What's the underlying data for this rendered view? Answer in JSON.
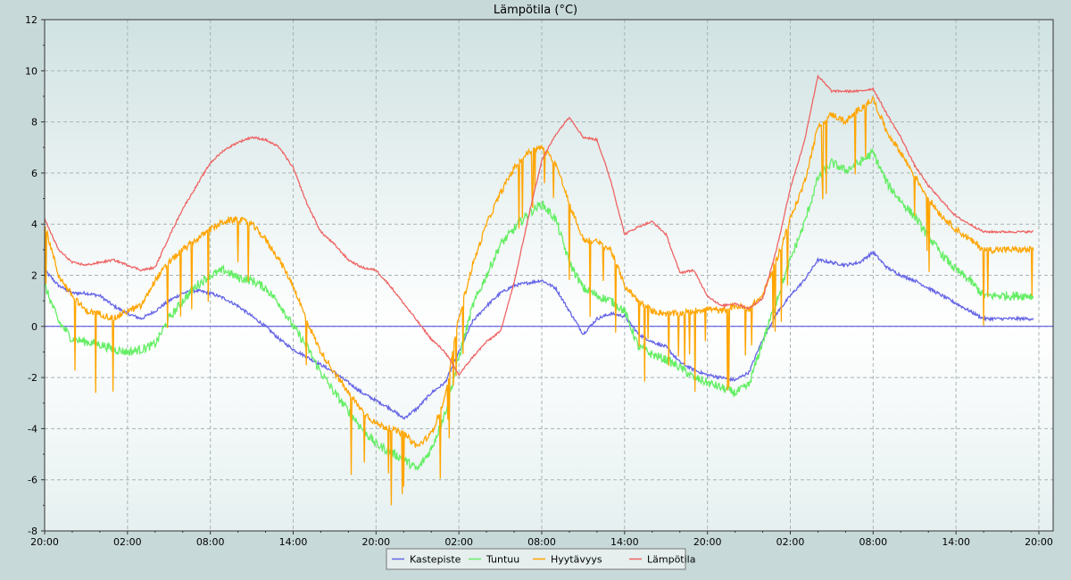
{
  "chart_data": {
    "type": "line",
    "title": "Lämpötila (°C)",
    "xlabel": "",
    "ylabel": "",
    "x_ticks": [
      "20:00",
      "02:00",
      "08:00",
      "14:00",
      "20:00",
      "02:00",
      "08:00",
      "14:00",
      "20:00",
      "02:00",
      "08:00",
      "14:00",
      "20:00"
    ],
    "x_range_hours": [
      0,
      72
    ],
    "ylim": [
      -8,
      12
    ],
    "y_ticks": [
      12,
      10,
      8,
      6,
      4,
      2,
      0,
      -2,
      -4,
      -6,
      -8
    ],
    "grid": true,
    "zero_line": true,
    "legend_position": "bottom-center",
    "series": [
      {
        "name": "Kastepiste",
        "color": "#6464e6",
        "points": [
          [
            0,
            2.2
          ],
          [
            1,
            1.6
          ],
          [
            2,
            1.3
          ],
          [
            3,
            1.3
          ],
          [
            4,
            1.2
          ],
          [
            5,
            0.8
          ],
          [
            6,
            0.5
          ],
          [
            7,
            0.3
          ],
          [
            8,
            0.6
          ],
          [
            9,
            1.0
          ],
          [
            10,
            1.3
          ],
          [
            11,
            1.4
          ],
          [
            12,
            1.3
          ],
          [
            13,
            1.1
          ],
          [
            14,
            0.8
          ],
          [
            15,
            0.4
          ],
          [
            16,
            0.0
          ],
          [
            17,
            -0.5
          ],
          [
            18,
            -0.9
          ],
          [
            19,
            -1.2
          ],
          [
            20,
            -1.5
          ],
          [
            21,
            -1.8
          ],
          [
            22,
            -2.2
          ],
          [
            23,
            -2.6
          ],
          [
            24,
            -2.9
          ],
          [
            25,
            -3.2
          ],
          [
            26,
            -3.6
          ],
          [
            27,
            -3.2
          ],
          [
            28,
            -2.6
          ],
          [
            29,
            -2.2
          ],
          [
            30,
            -1.0
          ],
          [
            31,
            0.2
          ],
          [
            32,
            0.8
          ],
          [
            33,
            1.3
          ],
          [
            34,
            1.6
          ],
          [
            35,
            1.7
          ],
          [
            36,
            1.8
          ],
          [
            37,
            1.5
          ],
          [
            38,
            0.6
          ],
          [
            39,
            -0.3
          ],
          [
            40,
            0.3
          ],
          [
            41,
            0.5
          ],
          [
            42,
            0.4
          ],
          [
            43,
            -0.3
          ],
          [
            44,
            -0.6
          ],
          [
            45,
            -0.8
          ],
          [
            46,
            -1.4
          ],
          [
            47,
            -1.7
          ],
          [
            48,
            -1.9
          ],
          [
            49,
            -2.0
          ],
          [
            50,
            -2.1
          ],
          [
            51,
            -1.8
          ],
          [
            52,
            -0.5
          ],
          [
            53,
            0.5
          ],
          [
            54,
            1.2
          ],
          [
            55,
            1.8
          ],
          [
            56,
            2.6
          ],
          [
            57,
            2.5
          ],
          [
            58,
            2.4
          ],
          [
            59,
            2.5
          ],
          [
            60,
            2.9
          ],
          [
            61,
            2.3
          ],
          [
            62,
            2.0
          ],
          [
            63,
            1.8
          ],
          [
            64,
            1.5
          ],
          [
            65,
            1.2
          ],
          [
            66,
            0.9
          ],
          [
            67,
            0.6
          ],
          [
            68,
            0.3
          ],
          [
            72,
            0.3
          ]
        ]
      },
      {
        "name": "Tuntuu",
        "color": "#64ee64",
        "points": [
          [
            0,
            1.6
          ],
          [
            1,
            0.2
          ],
          [
            2,
            -0.5
          ],
          [
            3,
            -0.6
          ],
          [
            4,
            -0.7
          ],
          [
            5,
            -0.9
          ],
          [
            6,
            -1.0
          ],
          [
            7,
            -0.9
          ],
          [
            8,
            -0.7
          ],
          [
            9,
            0.3
          ],
          [
            10,
            1.0
          ],
          [
            11,
            1.6
          ],
          [
            12,
            2.0
          ],
          [
            13,
            2.2
          ],
          [
            14,
            1.9
          ],
          [
            15,
            1.8
          ],
          [
            16,
            1.5
          ],
          [
            17,
            0.9
          ],
          [
            18,
            0.0
          ],
          [
            19,
            -0.8
          ],
          [
            20,
            -1.8
          ],
          [
            21,
            -2.6
          ],
          [
            22,
            -3.3
          ],
          [
            23,
            -4.0
          ],
          [
            24,
            -4.6
          ],
          [
            25,
            -4.9
          ],
          [
            26,
            -5.2
          ],
          [
            27,
            -5.6
          ],
          [
            28,
            -4.8
          ],
          [
            29,
            -3.4
          ],
          [
            30,
            -1.2
          ],
          [
            31,
            0.8
          ],
          [
            32,
            2.0
          ],
          [
            33,
            3.2
          ],
          [
            34,
            3.8
          ],
          [
            35,
            4.4
          ],
          [
            36,
            4.8
          ],
          [
            37,
            4.2
          ],
          [
            38,
            2.5
          ],
          [
            39,
            1.5
          ],
          [
            40,
            1.2
          ],
          [
            41,
            1.0
          ],
          [
            42,
            0.6
          ],
          [
            43,
            -0.8
          ],
          [
            44,
            -1.1
          ],
          [
            45,
            -1.3
          ],
          [
            46,
            -1.6
          ],
          [
            47,
            -2.0
          ],
          [
            48,
            -2.2
          ],
          [
            49,
            -2.4
          ],
          [
            50,
            -2.6
          ],
          [
            51,
            -2.3
          ],
          [
            52,
            -0.6
          ],
          [
            53,
            1.0
          ],
          [
            54,
            2.6
          ],
          [
            55,
            4.0
          ],
          [
            56,
            5.8
          ],
          [
            57,
            6.4
          ],
          [
            58,
            6.1
          ],
          [
            59,
            6.4
          ],
          [
            60,
            6.8
          ],
          [
            61,
            5.6
          ],
          [
            62,
            4.9
          ],
          [
            63,
            4.3
          ],
          [
            64,
            3.5
          ],
          [
            65,
            2.8
          ],
          [
            66,
            2.2
          ],
          [
            67,
            1.8
          ],
          [
            68,
            1.2
          ],
          [
            72,
            1.2
          ]
        ]
      },
      {
        "name": "Hyytävyys",
        "color": "#ffa500",
        "points": [
          [
            0,
            4.0
          ],
          [
            1,
            2.0
          ],
          [
            2,
            1.2
          ],
          [
            3,
            0.6
          ],
          [
            4,
            0.5
          ],
          [
            5,
            0.3
          ],
          [
            6,
            0.6
          ],
          [
            7,
            0.8
          ],
          [
            8,
            1.8
          ],
          [
            9,
            2.5
          ],
          [
            10,
            3.0
          ],
          [
            11,
            3.4
          ],
          [
            12,
            3.8
          ],
          [
            13,
            4.1
          ],
          [
            14,
            4.2
          ],
          [
            15,
            4.0
          ],
          [
            16,
            3.4
          ],
          [
            17,
            2.6
          ],
          [
            18,
            1.6
          ],
          [
            19,
            0.2
          ],
          [
            20,
            -1.0
          ],
          [
            21,
            -1.8
          ],
          [
            22,
            -2.6
          ],
          [
            23,
            -3.3
          ],
          [
            24,
            -3.8
          ],
          [
            25,
            -4.0
          ],
          [
            26,
            -4.2
          ],
          [
            27,
            -4.7
          ],
          [
            28,
            -4.2
          ],
          [
            29,
            -2.8
          ],
          [
            30,
            0.4
          ],
          [
            31,
            2.4
          ],
          [
            32,
            4.0
          ],
          [
            33,
            5.2
          ],
          [
            34,
            6.2
          ],
          [
            35,
            6.8
          ],
          [
            36,
            7.0
          ],
          [
            37,
            6.4
          ],
          [
            38,
            4.8
          ],
          [
            39,
            3.4
          ],
          [
            40,
            3.3
          ],
          [
            41,
            3.0
          ],
          [
            42,
            1.6
          ],
          [
            43,
            1.0
          ],
          [
            44,
            0.6
          ],
          [
            45,
            0.5
          ],
          [
            46,
            0.5
          ],
          [
            47,
            0.6
          ],
          [
            48,
            0.7
          ],
          [
            49,
            0.6
          ],
          [
            50,
            0.8
          ],
          [
            51,
            0.7
          ],
          [
            52,
            1.2
          ],
          [
            53,
            2.6
          ],
          [
            54,
            4.2
          ],
          [
            55,
            5.6
          ],
          [
            56,
            7.8
          ],
          [
            57,
            8.3
          ],
          [
            58,
            8.0
          ],
          [
            59,
            8.5
          ],
          [
            60,
            8.9
          ],
          [
            61,
            7.6
          ],
          [
            62,
            6.8
          ],
          [
            63,
            5.9
          ],
          [
            64,
            5.0
          ],
          [
            65,
            4.3
          ],
          [
            66,
            3.8
          ],
          [
            67,
            3.4
          ],
          [
            68,
            3.0
          ],
          [
            72,
            3.0
          ]
        ]
      },
      {
        "name": "Lämpötila",
        "color": "#ee6464",
        "points": [
          [
            0,
            4.2
          ],
          [
            1,
            3.0
          ],
          [
            2,
            2.5
          ],
          [
            3,
            2.4
          ],
          [
            4,
            2.5
          ],
          [
            5,
            2.6
          ],
          [
            6,
            2.4
          ],
          [
            7,
            2.2
          ],
          [
            8,
            2.3
          ],
          [
            9,
            3.5
          ],
          [
            10,
            4.6
          ],
          [
            11,
            5.5
          ],
          [
            12,
            6.4
          ],
          [
            13,
            6.9
          ],
          [
            14,
            7.2
          ],
          [
            15,
            7.4
          ],
          [
            16,
            7.3
          ],
          [
            17,
            7.0
          ],
          [
            18,
            6.2
          ],
          [
            19,
            4.8
          ],
          [
            20,
            3.7
          ],
          [
            21,
            3.2
          ],
          [
            22,
            2.6
          ],
          [
            23,
            2.3
          ],
          [
            24,
            2.2
          ],
          [
            25,
            1.6
          ],
          [
            26,
            0.9
          ],
          [
            27,
            0.2
          ],
          [
            28,
            -0.5
          ],
          [
            29,
            -1.0
          ],
          [
            30,
            -1.9
          ],
          [
            31,
            -1.2
          ],
          [
            32,
            -0.6
          ],
          [
            33,
            -0.2
          ],
          [
            34,
            1.7
          ],
          [
            35,
            4.2
          ],
          [
            36,
            6.5
          ],
          [
            37,
            7.5
          ],
          [
            38,
            8.2
          ],
          [
            39,
            7.4
          ],
          [
            40,
            7.3
          ],
          [
            41,
            5.7
          ],
          [
            42,
            3.6
          ],
          [
            43,
            3.9
          ],
          [
            44,
            4.1
          ],
          [
            45,
            3.6
          ],
          [
            46,
            2.1
          ],
          [
            47,
            2.2
          ],
          [
            48,
            1.2
          ],
          [
            49,
            0.8
          ],
          [
            50,
            0.9
          ],
          [
            51,
            0.7
          ],
          [
            52,
            1.1
          ],
          [
            53,
            3.0
          ],
          [
            54,
            5.4
          ],
          [
            55,
            7.2
          ],
          [
            56,
            9.8
          ],
          [
            57,
            9.2
          ],
          [
            58,
            9.2
          ],
          [
            59,
            9.2
          ],
          [
            60,
            9.3
          ],
          [
            61,
            8.3
          ],
          [
            62,
            7.4
          ],
          [
            63,
            6.3
          ],
          [
            64,
            5.5
          ],
          [
            65,
            4.9
          ],
          [
            66,
            4.3
          ],
          [
            67,
            4.0
          ],
          [
            68,
            3.7
          ],
          [
            72,
            3.7
          ]
        ]
      }
    ]
  }
}
